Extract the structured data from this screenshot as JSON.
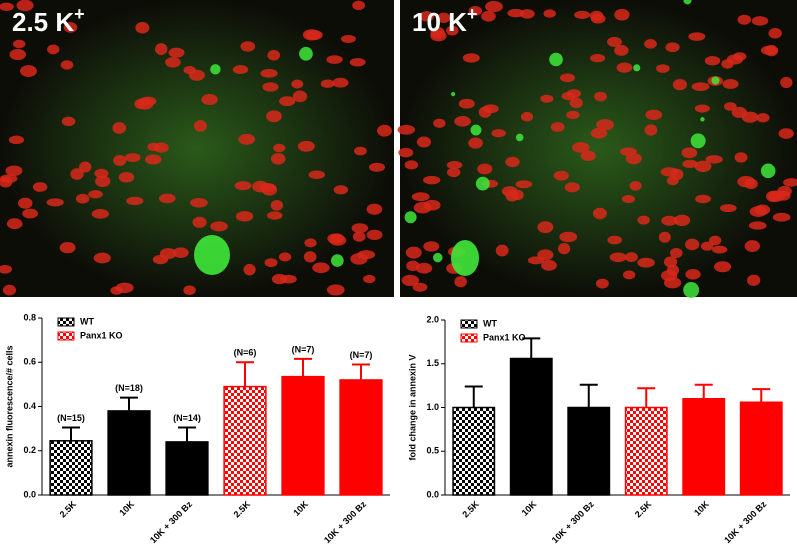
{
  "panels": [
    {
      "label": "2.5 K",
      "superscript": "+"
    },
    {
      "label": "10 K",
      "superscript": "+"
    }
  ],
  "chart_data": [
    {
      "type": "bar",
      "y_label": "annexin fluorescence/# cells",
      "categories": [
        "2.5K",
        "10K",
        "10K + 300 Bz",
        "2.5K",
        "10K",
        "10K + 300 Bz"
      ],
      "series": [
        {
          "name": "WT",
          "color": "#000000",
          "values": [
            0.245,
            0.38,
            0.24,
            null,
            null,
            null
          ],
          "errors": [
            0.06,
            0.06,
            0.065,
            null,
            null,
            null
          ]
        },
        {
          "name": "Panx1 KO",
          "color": "#ff0000",
          "values": [
            null,
            null,
            null,
            0.49,
            0.535,
            0.52
          ],
          "errors": [
            null,
            null,
            null,
            0.11,
            0.08,
            0.07
          ]
        }
      ],
      "hatch": [
        true,
        false,
        false,
        true,
        false,
        false
      ],
      "annotations": [
        "(N=15)",
        "(N=18)",
        "(N=14)",
        "(N=6)",
        "(N=7)",
        "(N=7)"
      ],
      "ylim": [
        0,
        0.8
      ],
      "yticks": [
        {
          "value": 0,
          "label": "0.0"
        },
        0.2,
        0.4,
        0.6,
        0.8
      ],
      "legend": "top-left"
    },
    {
      "type": "bar",
      "y_label": "fold change in annexin V",
      "categories": [
        "2.5K",
        "10K",
        "10K + 300 Bz",
        "2.5K",
        "10K",
        "10K + 300 Bz"
      ],
      "series": [
        {
          "name": "WT",
          "color": "#000000",
          "values": [
            1.0,
            1.56,
            1.0,
            null,
            null,
            null
          ],
          "errors": [
            0.24,
            0.23,
            0.26,
            null,
            null,
            null
          ]
        },
        {
          "name": "Panx1 KO",
          "color": "#ff0000",
          "values": [
            null,
            null,
            null,
            1.0,
            1.1,
            1.06
          ],
          "errors": [
            null,
            null,
            null,
            0.22,
            0.16,
            0.15
          ]
        }
      ],
      "hatch": [
        true,
        false,
        false,
        true,
        false,
        false
      ],
      "ylim": [
        0,
        2
      ],
      "yticks": [
        {
          "value": 0,
          "label": "0.0"
        },
        0.5,
        {
          "value": 1,
          "label": "1.0"
        },
        1.5,
        {
          "value": 2,
          "label": "2.0"
        }
      ],
      "legend": "top-left"
    }
  ]
}
